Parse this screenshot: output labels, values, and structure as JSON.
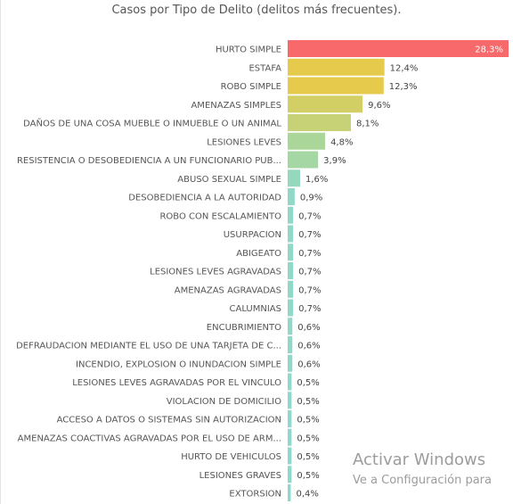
{
  "chart_data": {
    "type": "bar",
    "orientation": "horizontal",
    "title": "Casos por Tipo de Delito (delitos más frecuentes).",
    "xlabel": "",
    "ylabel": "",
    "xlim": [
      0,
      28.3
    ],
    "grid": false,
    "categories": [
      "HURTO SIMPLE",
      "ESTAFA",
      "ROBO SIMPLE",
      "AMENAZAS SIMPLES",
      "DAÑOS DE UNA COSA MUEBLE O INMUEBLE O UN ANIMAL",
      "LESIONES LEVES",
      "RESISTENCIA O DESOBEDIENCIA A UN FUNCIONARIO PUB...",
      "ABUSO SEXUAL SIMPLE",
      "DESOBEDIENCIA A LA AUTORIDAD",
      "ROBO CON ESCALAMIENTO",
      "USURPACION",
      "ABIGEATO",
      "LESIONES LEVES AGRAVADAS",
      "AMENAZAS AGRAVADAS",
      "CALUMNIAS",
      "ENCUBRIMIENTO",
      "DEFRAUDACION MEDIANTE EL USO DE UNA TARJETA DE C...",
      "INCENDIO, EXPLOSION O INUNDACION SIMPLE",
      "LESIONES LEVES AGRAVADAS POR EL VINCULO",
      "VIOLACION DE DOMICILIO",
      "ACCESO A DATOS O SISTEMAS SIN AUTORIZACION",
      "AMENAZAS COACTIVAS AGRAVADAS POR EL USO DE ARM...",
      "HURTO DE VEHICULOS",
      "LESIONES GRAVES",
      "EXTORSION"
    ],
    "values": [
      28.3,
      12.4,
      12.3,
      9.6,
      8.1,
      4.8,
      3.9,
      1.6,
      0.9,
      0.7,
      0.7,
      0.7,
      0.7,
      0.7,
      0.7,
      0.6,
      0.6,
      0.6,
      0.5,
      0.5,
      0.5,
      0.5,
      0.5,
      0.5,
      0.4
    ],
    "value_labels": [
      "28,3%",
      "12,4%",
      "12,3%",
      "9,6%",
      "8,1%",
      "4,8%",
      "3,9%",
      "1,6%",
      "0,9%",
      "0,7%",
      "0,7%",
      "0,7%",
      "0,7%",
      "0,7%",
      "0,7%",
      "0,6%",
      "0,6%",
      "0,6%",
      "0,5%",
      "0,5%",
      "0,5%",
      "0,5%",
      "0,5%",
      "0,5%",
      "0,4%"
    ],
    "color_scale": [
      "#f8696b",
      "#e6cc4a",
      "#a8d79c",
      "#8fd8cc"
    ]
  },
  "watermark": {
    "title": "Activar Windows",
    "subtitle": "Ve a Configuración para"
  }
}
